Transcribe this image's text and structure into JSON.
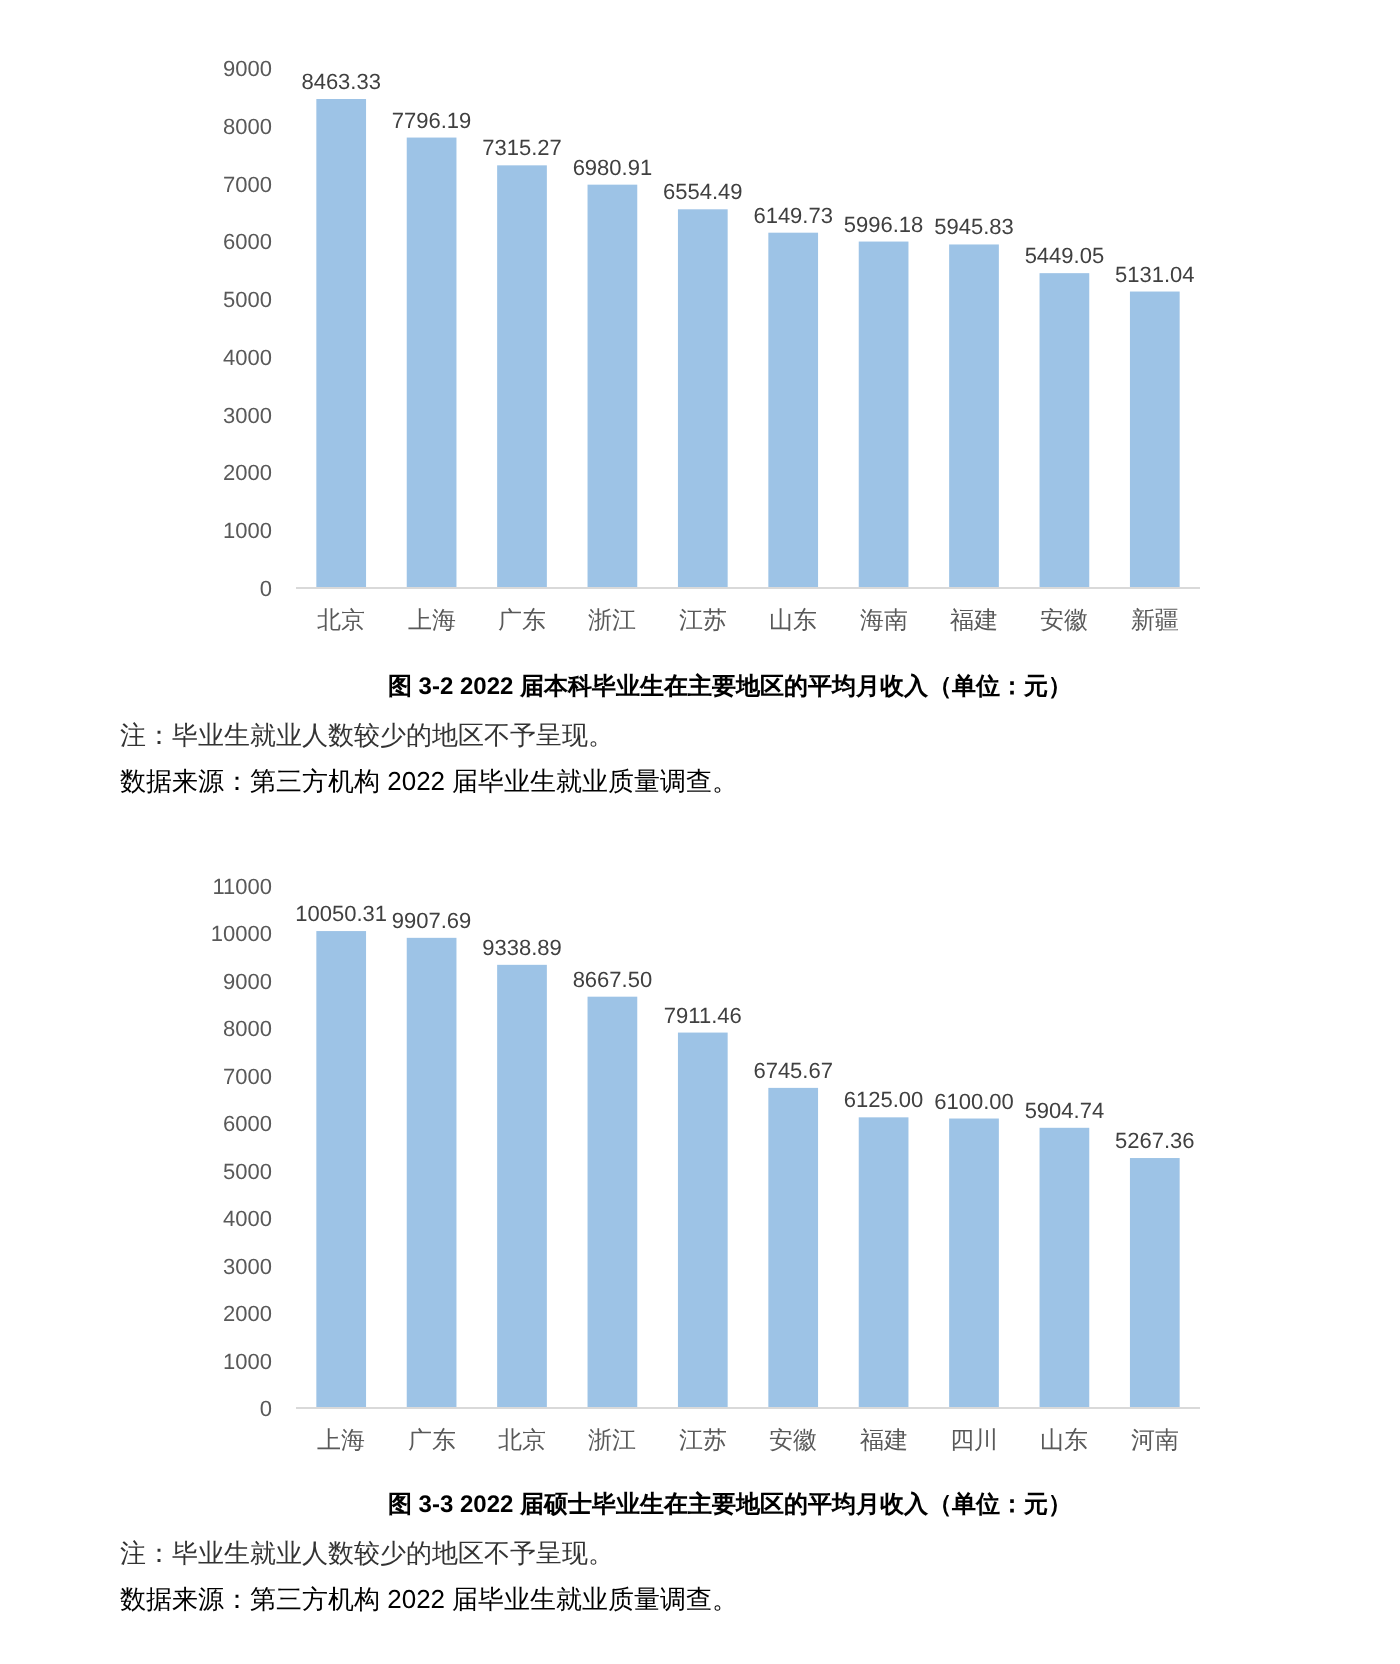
{
  "chart_data": [
    {
      "type": "bar",
      "title": "图 3-2   2022 届本科毕业生在主要地区的平均月收入（单位：元）",
      "categories": [
        "北京",
        "上海",
        "广东",
        "浙江",
        "江苏",
        "山东",
        "海南",
        "福建",
        "安徽",
        "新疆"
      ],
      "values": [
        8463.33,
        7796.19,
        7315.27,
        6980.91,
        6554.49,
        6149.73,
        5996.18,
        5945.83,
        5449.05,
        5131.04
      ],
      "value_labels": [
        "8463.33",
        "7796.19",
        "7315.27",
        "6980.91",
        "6554.49",
        "6149.73",
        "5996.18",
        "5945.83",
        "5449.05",
        "5131.04"
      ],
      "color": "#9dc3e6",
      "ylim": [
        0,
        9000
      ],
      "yticks": [
        0,
        1000,
        2000,
        3000,
        4000,
        5000,
        6000,
        7000,
        8000,
        9000
      ],
      "annotations": [
        "注：毕业生就业人数较少的地区不予呈现。",
        "数据来源：第三方机构 2022 届毕业生就业质量调查。"
      ]
    },
    {
      "type": "bar",
      "title": "图 3-3   2022 届硕士毕业生在主要地区的平均月收入（单位：元）",
      "categories": [
        "上海",
        "广东",
        "北京",
        "浙江",
        "江苏",
        "安徽",
        "福建",
        "四川",
        "山东",
        "河南"
      ],
      "values": [
        10050.31,
        9907.69,
        9338.89,
        8667.5,
        7911.46,
        6745.67,
        6125,
        6100,
        5904.74,
        5267.36
      ],
      "value_labels": [
        "10050.31",
        "9907.69",
        "9338.89",
        "8667.50",
        "7911.46",
        "6745.67",
        "6125.00",
        "6100.00",
        "5904.74",
        "5267.36"
      ],
      "color": "#9dc3e6",
      "ylim": [
        0,
        11000
      ],
      "yticks": [
        0,
        1000,
        2000,
        3000,
        4000,
        5000,
        6000,
        7000,
        8000,
        9000,
        10000,
        11000
      ],
      "annotations": [
        "注：毕业生就业人数较少的地区不予呈现。",
        "数据来源：第三方机构 2022 届毕业生就业质量调查。"
      ]
    }
  ]
}
